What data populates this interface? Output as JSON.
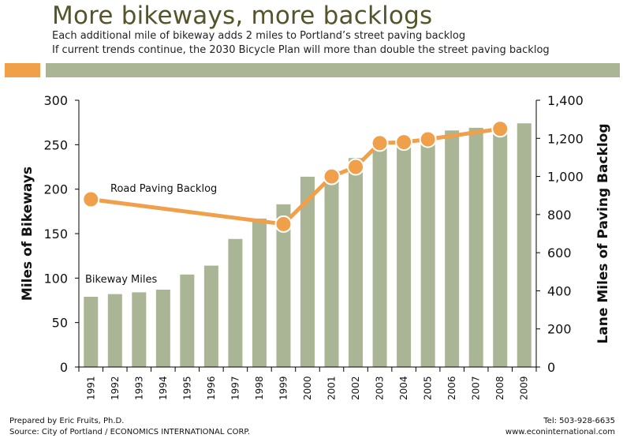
{
  "header": {
    "title": "More bikeways, more backlogs",
    "subtitle1": "Each additional mile of bikeway adds 2 miles to Portland’s street paving backlog",
    "subtitle2": "If current trends continue, the 2030 Bicycle Plan will more than double the street paving backlog"
  },
  "colors": {
    "accent_orange": "#f1a04a",
    "bar_green": "#a9b594",
    "line_orange": "#f0a04b",
    "title_olive": "#55542a"
  },
  "chart_data": {
    "type": "bar",
    "categories": [
      "1991",
      "1992",
      "1993",
      "1994",
      "1995",
      "1996",
      "1997",
      "1998",
      "1999",
      "2000",
      "2001",
      "2002",
      "2003",
      "2004",
      "2005",
      "2006",
      "2007",
      "2008",
      "2009"
    ],
    "ylabel": "Miles of Bikeways",
    "ylabel_right": "Lane Miles of Paving Backlog",
    "ylim": [
      0,
      300
    ],
    "ylim_right": [
      0,
      1400
    ],
    "yticks": [
      "0",
      "50",
      "100",
      "150",
      "200",
      "250",
      "300"
    ],
    "yticks_right": [
      "0",
      "200",
      "400",
      "600",
      "800",
      "1,000",
      "1,200",
      "1,400"
    ],
    "grid": false,
    "series": [
      {
        "name": "Bikeway Miles",
        "axis": "left",
        "type": "bar",
        "values": [
          79,
          82,
          84,
          87,
          104,
          114,
          144,
          167,
          183,
          214,
          221,
          235,
          246,
          252,
          258,
          266,
          269,
          272,
          274
        ]
      },
      {
        "name": "Road Paving Backlog",
        "axis": "right",
        "type": "line",
        "x": [
          "1991",
          "1999",
          "2001",
          "2002",
          "2003",
          "2004",
          "2005",
          "2008"
        ],
        "values": [
          880,
          750,
          1000,
          1050,
          1175,
          1180,
          1195,
          1250
        ]
      }
    ]
  },
  "footer": {
    "prepared": "Prepared by Eric Fruits, Ph.D.",
    "source": "Source: City of Portland / ECONOMICS INTERNATIONAL CORP.",
    "tel": "Tel: 503-928-6635",
    "web": "www.econinternational.com"
  }
}
